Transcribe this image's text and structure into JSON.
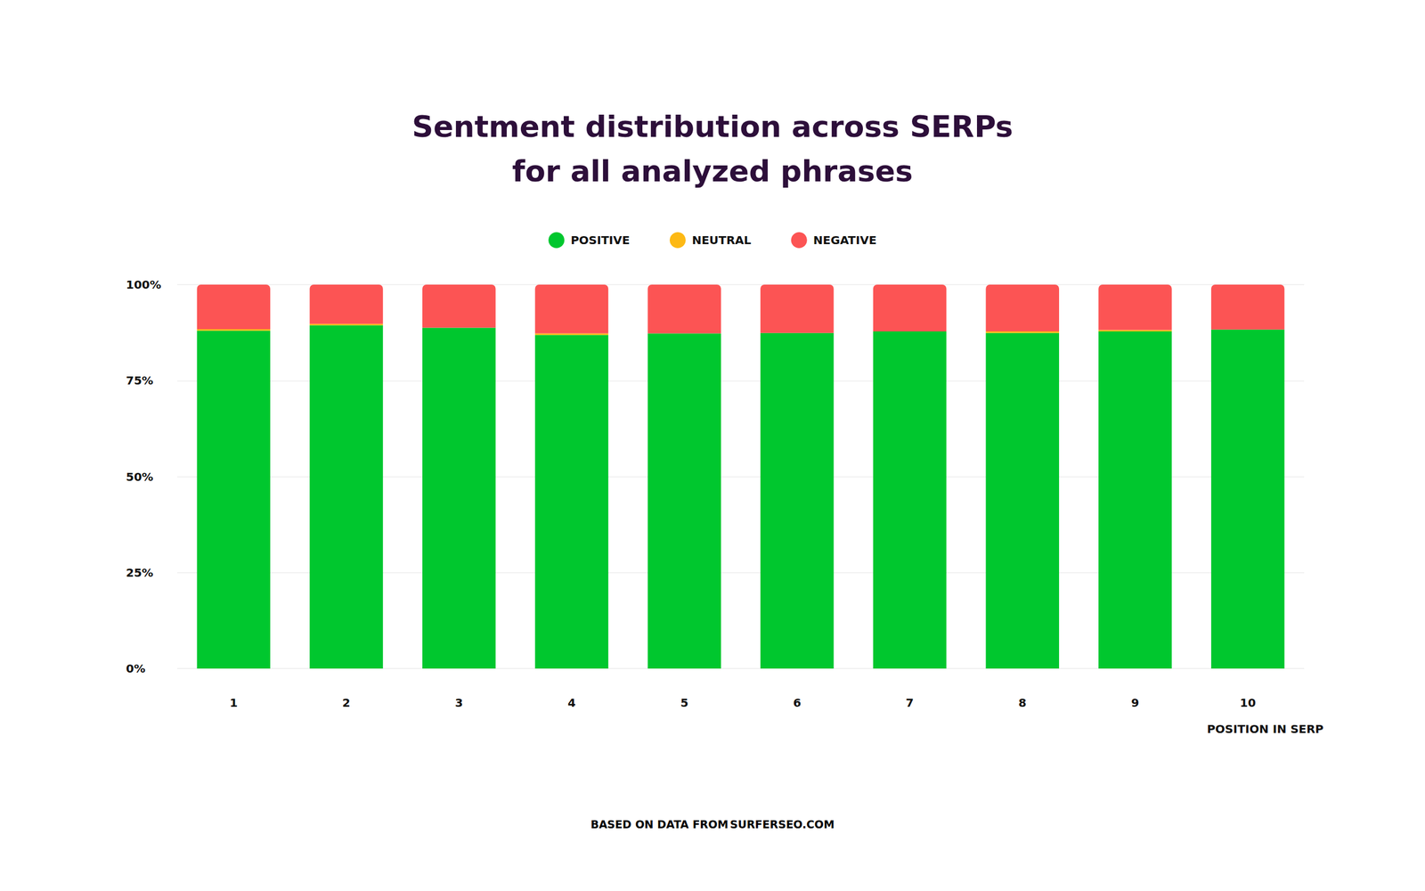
{
  "chart_data": {
    "type": "bar",
    "title": "Sentment distribution across SERPs\nfor all analyzed phrases",
    "x_label": "POSITION IN SERP",
    "source_label": "BASED ON DATA FROM",
    "source": "SURFERSEO.COM",
    "categories": [
      "1",
      "2",
      "3",
      "4",
      "5",
      "6",
      "7",
      "8",
      "9",
      "10"
    ],
    "series": [
      {
        "name": "POSITIVE",
        "color": "#00c72e",
        "values": [
          88.0,
          89.4,
          88.8,
          86.9,
          87.3,
          87.4,
          87.8,
          87.4,
          87.8,
          88.3
        ]
      },
      {
        "name": "NEUTRAL",
        "color": "#fdb915",
        "values": [
          0.4,
          0.4,
          0.0,
          0.4,
          0.0,
          0.0,
          0.0,
          0.4,
          0.4,
          0.0
        ]
      },
      {
        "name": "NEGATIVE",
        "color": "#fc5454",
        "values": [
          11.6,
          10.2,
          11.2,
          12.7,
          12.7,
          12.6,
          12.2,
          12.2,
          11.8,
          11.7
        ]
      }
    ],
    "ylim": [
      0,
      100
    ],
    "yticks": [
      {
        "value": 0,
        "label": "0%"
      },
      {
        "value": 25,
        "label": "25%"
      },
      {
        "value": 50,
        "label": "50%"
      },
      {
        "value": 75,
        "label": "75%"
      },
      {
        "value": 100,
        "label": "100%"
      }
    ],
    "stacked": true,
    "grid": true,
    "legend": "top"
  }
}
